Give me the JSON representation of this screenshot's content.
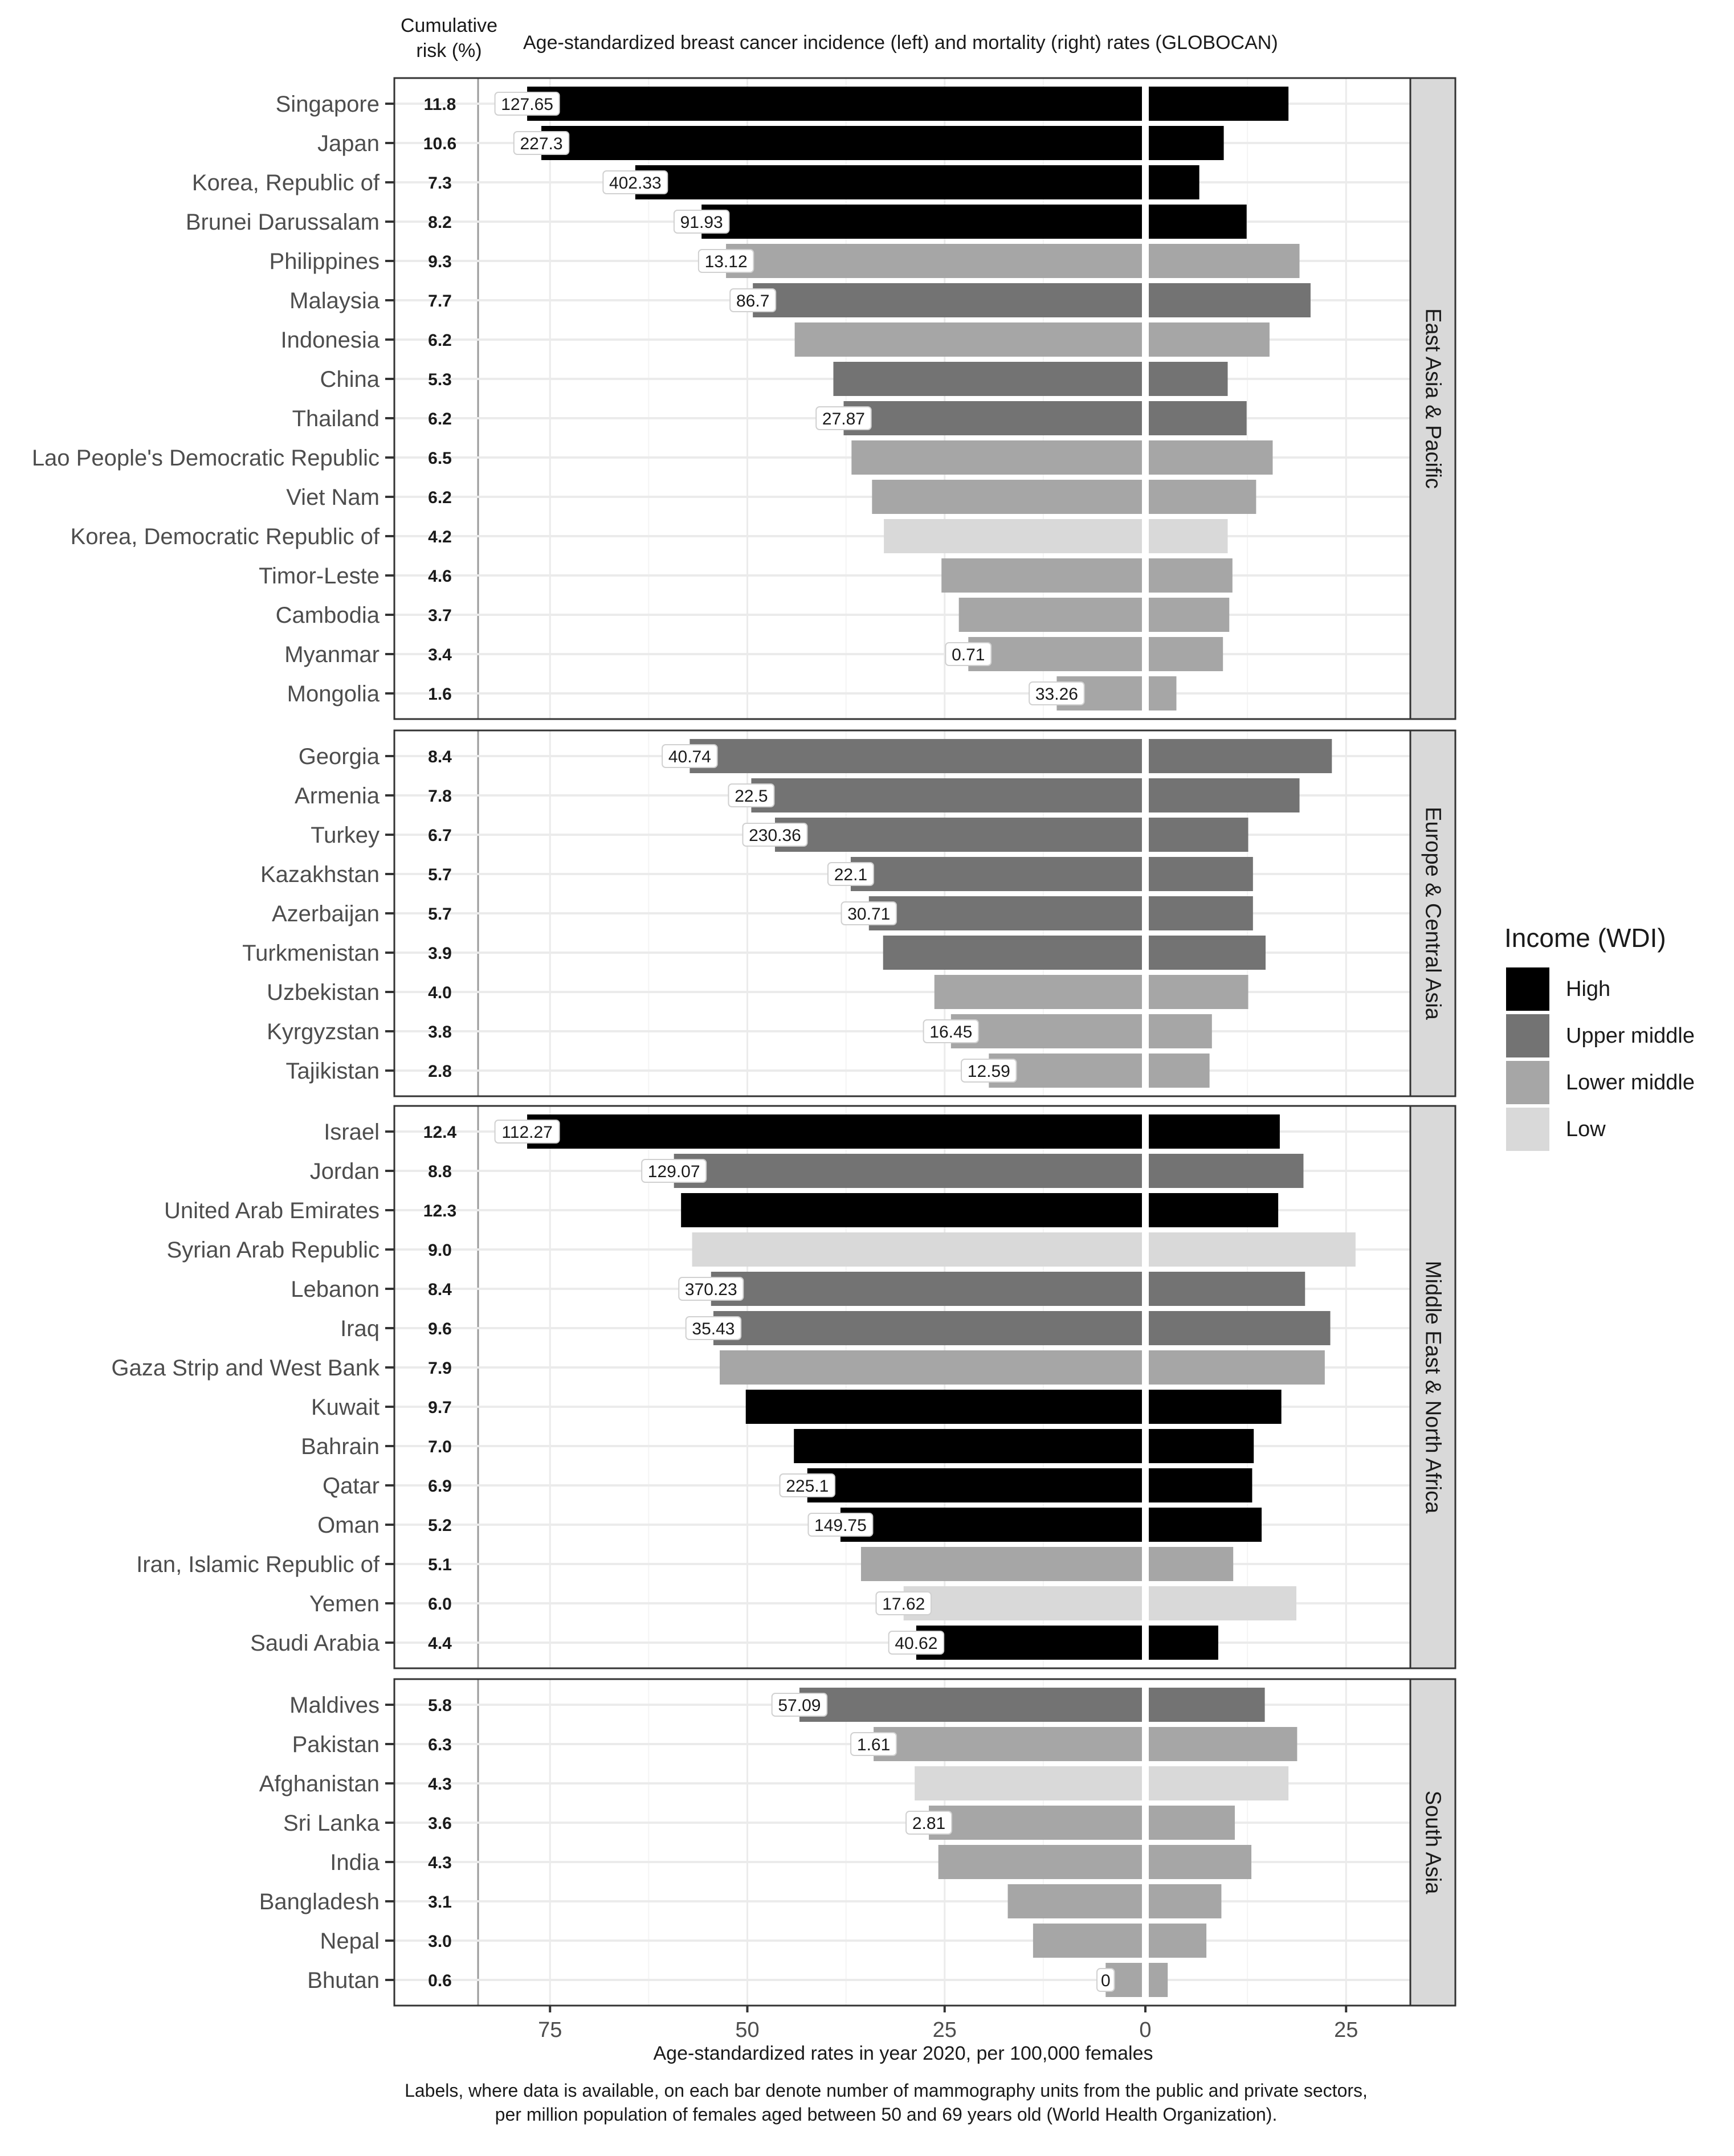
{
  "chart_data": {
    "type": "bar",
    "subtype": "diverging horizontal bar (population-pyramid style), faceted by region",
    "title": "Age-standardized breast cancer incidence (left) and mortality (right) rates (GLOBOCAN)",
    "risk_column_header": "Cumulative risk (%)",
    "risk_column_header_lines": [
      "Cumulative",
      "risk (%)"
    ],
    "xlabel": "Age-standardized rates in year 2020, per 100,000 females",
    "caption_lines": [
      "Labels, where data is available, on each bar denote number of mammography units from the public and private sectors,",
      "per million population of females aged between 50 and 69 years old (World Health Organization)."
    ],
    "x_ticks": [
      {
        "value": -75,
        "label": "75"
      },
      {
        "value": -50,
        "label": "50"
      },
      {
        "value": -25,
        "label": "25"
      },
      {
        "value": 0,
        "label": "0"
      },
      {
        "value": 25,
        "label": "25"
      }
    ],
    "xlim": [
      -85,
      33
    ],
    "grid": true,
    "legend": {
      "title": "Income (WDI)",
      "position": "right",
      "items": [
        {
          "key": "High",
          "label": "High",
          "color": "#000000"
        },
        {
          "key": "Upper middle",
          "label": "Upper middle",
          "color": "#737373"
        },
        {
          "key": "Lower middle",
          "label": "Lower middle",
          "color": "#a6a6a6"
        },
        {
          "key": "Low",
          "label": "Low",
          "color": "#d9d9d9"
        }
      ]
    },
    "facets": [
      {
        "region": "East Asia & Pacific",
        "rows": [
          {
            "country": "Singapore",
            "risk": "11.8",
            "income": "High",
            "incidence": 77.9,
            "mortality": 17.7,
            "mammography": "127.65"
          },
          {
            "country": "Japan",
            "risk": "10.6",
            "income": "High",
            "incidence": 76.1,
            "mortality": 9.5,
            "mammography": "227.3"
          },
          {
            "country": "Korea, Republic of",
            "risk": "7.3",
            "income": "High",
            "incidence": 64.2,
            "mortality": 6.4,
            "mammography": "402.33"
          },
          {
            "country": "Brunei Darussalam",
            "risk": "8.2",
            "income": "High",
            "incidence": 55.8,
            "mortality": 12.4,
            "mammography": "91.93"
          },
          {
            "country": "Philippines",
            "risk": "9.3",
            "income": "Lower middle",
            "incidence": 52.7,
            "mortality": 19.1,
            "mammography": "13.12"
          },
          {
            "country": "Malaysia",
            "risk": "7.7",
            "income": "Upper middle",
            "incidence": 49.3,
            "mortality": 20.5,
            "mammography": "86.7"
          },
          {
            "country": "Indonesia",
            "risk": "6.2",
            "income": "Lower middle",
            "incidence": 44.0,
            "mortality": 15.3,
            "mammography": null
          },
          {
            "country": "China",
            "risk": "5.3",
            "income": "Upper middle",
            "incidence": 39.1,
            "mortality": 10.0,
            "mammography": null
          },
          {
            "country": "Thailand",
            "risk": "6.2",
            "income": "Upper middle",
            "incidence": 37.8,
            "mortality": 12.4,
            "mammography": "27.87"
          },
          {
            "country": "Lao People's Democratic Republic",
            "risk": "6.5",
            "income": "Lower middle",
            "incidence": 36.8,
            "mortality": 15.7,
            "mammography": null
          },
          {
            "country": "Viet Nam",
            "risk": "6.2",
            "income": "Lower middle",
            "incidence": 34.2,
            "mortality": 13.6,
            "mammography": null
          },
          {
            "country": "Korea, Democratic Republic of",
            "risk": "4.2",
            "income": "Low",
            "incidence": 32.7,
            "mortality": 10.0,
            "mammography": null
          },
          {
            "country": "Timor-Leste",
            "risk": "4.6",
            "income": "Lower middle",
            "incidence": 25.4,
            "mortality": 10.6,
            "mammography": null
          },
          {
            "country": "Cambodia",
            "risk": "3.7",
            "income": "Lower middle",
            "incidence": 23.2,
            "mortality": 10.2,
            "mammography": null
          },
          {
            "country": "Myanmar",
            "risk": "3.4",
            "income": "Lower middle",
            "incidence": 22.0,
            "mortality": 9.4,
            "mammography": "0.71"
          },
          {
            "country": "Mongolia",
            "risk": "1.6",
            "income": "Lower middle",
            "incidence": 10.8,
            "mortality": 3.5,
            "mammography": "33.26"
          }
        ]
      },
      {
        "region": "Europe & Central Asia",
        "rows": [
          {
            "country": "Georgia",
            "risk": "8.4",
            "income": "Upper middle",
            "incidence": 57.3,
            "mortality": 23.2,
            "mammography": "40.74"
          },
          {
            "country": "Armenia",
            "risk": "7.8",
            "income": "Upper middle",
            "incidence": 49.5,
            "mortality": 19.1,
            "mammography": "22.5"
          },
          {
            "country": "Turkey",
            "risk": "6.7",
            "income": "Upper middle",
            "incidence": 46.5,
            "mortality": 12.6,
            "mammography": "230.36"
          },
          {
            "country": "Kazakhstan",
            "risk": "5.7",
            "income": "Upper middle",
            "incidence": 36.9,
            "mortality": 13.2,
            "mammography": "22.1"
          },
          {
            "country": "Azerbaijan",
            "risk": "5.7",
            "income": "Upper middle",
            "incidence": 34.6,
            "mortality": 13.2,
            "mammography": "30.71"
          },
          {
            "country": "Turkmenistan",
            "risk": "3.9",
            "income": "Upper middle",
            "incidence": 32.8,
            "mortality": 14.8,
            "mammography": null
          },
          {
            "country": "Uzbekistan",
            "risk": "4.0",
            "income": "Lower middle",
            "incidence": 26.3,
            "mortality": 12.6,
            "mammography": null
          },
          {
            "country": "Kyrgyzstan",
            "risk": "3.8",
            "income": "Lower middle",
            "incidence": 24.2,
            "mortality": 8.0,
            "mammography": "16.45"
          },
          {
            "country": "Tajikistan",
            "risk": "2.8",
            "income": "Lower middle",
            "incidence": 19.4,
            "mortality": 7.7,
            "mammography": "12.59"
          }
        ]
      },
      {
        "region": "Middle East & North Africa",
        "rows": [
          {
            "country": "Israel",
            "risk": "12.4",
            "income": "High",
            "incidence": 77.9,
            "mortality": 16.6,
            "mammography": "112.27"
          },
          {
            "country": "Jordan",
            "risk": "8.8",
            "income": "Upper middle",
            "incidence": 59.3,
            "mortality": 19.6,
            "mammography": "129.07"
          },
          {
            "country": "United Arab Emirates",
            "risk": "12.3",
            "income": "High",
            "incidence": 58.4,
            "mortality": 16.4,
            "mammography": null
          },
          {
            "country": "Syrian Arab Republic",
            "risk": "9.0",
            "income": "Low",
            "incidence": 57.0,
            "mortality": 26.2,
            "mammography": null
          },
          {
            "country": "Lebanon",
            "risk": "8.4",
            "income": "Upper middle",
            "incidence": 54.6,
            "mortality": 19.8,
            "mammography": "370.23"
          },
          {
            "country": "Iraq",
            "risk": "9.6",
            "income": "Upper middle",
            "incidence": 54.3,
            "mortality": 23.0,
            "mammography": "35.43"
          },
          {
            "country": "Gaza Strip and West Bank",
            "risk": "7.9",
            "income": "Lower middle",
            "incidence": 53.5,
            "mortality": 22.3,
            "mammography": null
          },
          {
            "country": "Kuwait",
            "risk": "9.7",
            "income": "High",
            "incidence": 50.2,
            "mortality": 16.8,
            "mammography": null
          },
          {
            "country": "Bahrain",
            "risk": "7.0",
            "income": "High",
            "incidence": 44.1,
            "mortality": 13.3,
            "mammography": null
          },
          {
            "country": "Qatar",
            "risk": "6.9",
            "income": "High",
            "incidence": 42.4,
            "mortality": 13.1,
            "mammography": "225.1"
          },
          {
            "country": "Oman",
            "risk": "5.2",
            "income": "High",
            "incidence": 38.2,
            "mortality": 14.3,
            "mammography": "149.75"
          },
          {
            "country": "Iran, Islamic Republic of",
            "risk": "5.1",
            "income": "Lower middle",
            "incidence": 35.6,
            "mortality": 10.7,
            "mammography": null
          },
          {
            "country": "Yemen",
            "risk": "6.0",
            "income": "Low",
            "incidence": 30.2,
            "mortality": 18.7,
            "mammography": "17.62"
          },
          {
            "country": "Saudi Arabia",
            "risk": "4.4",
            "income": "High",
            "incidence": 28.6,
            "mortality": 8.8,
            "mammography": "40.62"
          }
        ]
      },
      {
        "region": "South Asia",
        "rows": [
          {
            "country": "Maldives",
            "risk": "5.8",
            "income": "Upper middle",
            "incidence": 43.4,
            "mortality": 14.7,
            "mammography": "57.09"
          },
          {
            "country": "Pakistan",
            "risk": "6.3",
            "income": "Lower middle",
            "incidence": 34.0,
            "mortality": 18.8,
            "mammography": "1.61"
          },
          {
            "country": "Afghanistan",
            "risk": "4.3",
            "income": "Low",
            "incidence": 28.8,
            "mortality": 17.7,
            "mammography": null
          },
          {
            "country": "Sri Lanka",
            "risk": "3.6",
            "income": "Lower middle",
            "incidence": 27.0,
            "mortality": 10.9,
            "mammography": "2.81"
          },
          {
            "country": "India",
            "risk": "4.3",
            "income": "Lower middle",
            "incidence": 25.8,
            "mortality": 13.0,
            "mammography": null
          },
          {
            "country": "Bangladesh",
            "risk": "3.1",
            "income": "Lower middle",
            "incidence": 17.0,
            "mortality": 9.2,
            "mammography": null
          },
          {
            "country": "Nepal",
            "risk": "3.0",
            "income": "Lower middle",
            "incidence": 13.8,
            "mortality": 7.3,
            "mammography": null
          },
          {
            "country": "Bhutan",
            "risk": "0.6",
            "income": "Lower middle",
            "incidence": 4.6,
            "mortality": 2.4,
            "mammography": "0"
          }
        ]
      }
    ]
  }
}
